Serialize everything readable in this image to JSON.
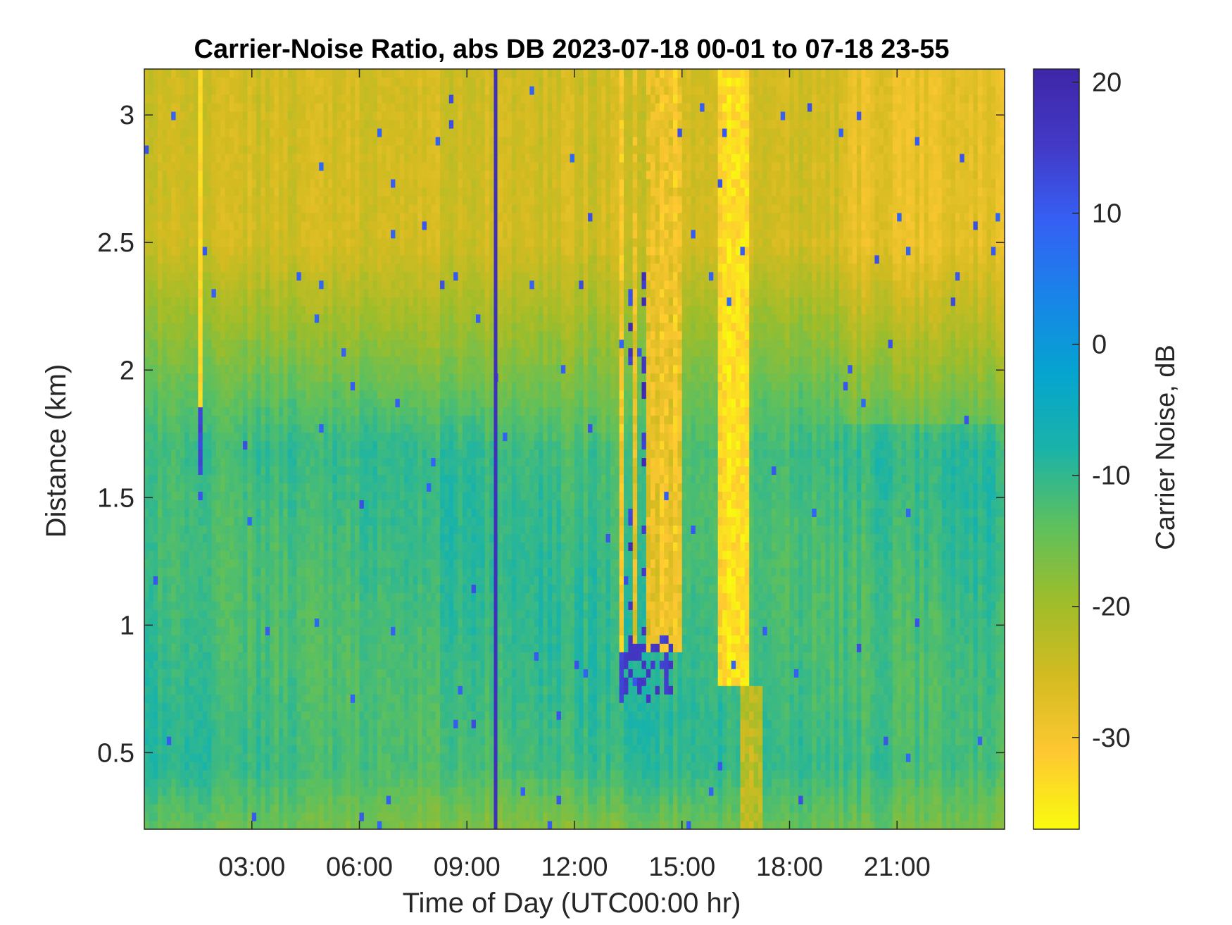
{
  "chart_data": {
    "type": "heatmap",
    "title": "Carrier-Noise Ratio, abs DB 2023-07-18 00-01 to 07-18 23-55",
    "xlabel": "Time of Day (UTC00:00 hr)",
    "ylabel": "Distance (km)",
    "x_unit": "hours",
    "xlim": [
      0.0,
      24.0
    ],
    "ylim": [
      0.2,
      3.18
    ],
    "x_ticks": [
      3,
      6,
      9,
      12,
      15,
      18,
      21
    ],
    "x_tick_labels": [
      "03:00",
      "06:00",
      "09:00",
      "12:00",
      "15:00",
      "18:00",
      "21:00"
    ],
    "y_ticks": [
      0.5,
      1,
      1.5,
      2,
      2.5,
      3
    ],
    "y_tick_labels": [
      "0.5",
      "1",
      "1.5",
      "2",
      "2.5",
      "3"
    ],
    "colorbar": {
      "label": "Carrier Noise, dB",
      "clim": [
        -37,
        21
      ],
      "ticks": [
        20,
        10,
        0,
        -10,
        -20,
        -30
      ],
      "tick_labels": [
        "20",
        "10",
        "0",
        "-10",
        "-20",
        "-30"
      ],
      "colormap": "parula-reversed",
      "colormap_stops": [
        "#f9fb0e",
        "#fec832",
        "#d4bb21",
        "#9ebd2a",
        "#5dc05e",
        "#1ab3a8",
        "#05a4d0",
        "#1884e8",
        "#3560f4",
        "#4339c6",
        "#3e26a8"
      ]
    },
    "grid": false,
    "features": [
      {
        "name": "background-low",
        "y_range": [
          0.2,
          1.7
        ],
        "value_range": [
          -14,
          -9
        ]
      },
      {
        "name": "background-high",
        "y_range": [
          2.2,
          3.18
        ],
        "value_range": [
          -28,
          -22
        ]
      },
      {
        "name": "dropout-line",
        "x": 9.8,
        "value": 18
      },
      {
        "name": "thin-line",
        "x": 1.6,
        "y_range": [
          1.8,
          3.18
        ],
        "value": -34
      },
      {
        "name": "plume-core",
        "x_range": [
          16.0,
          16.9
        ],
        "y_range": [
          0.75,
          3.18
        ],
        "value": -34
      },
      {
        "name": "plume-shear",
        "x_range": [
          13.3,
          15.0
        ],
        "y_range": [
          0.9,
          3.18
        ],
        "value": -31
      },
      {
        "name": "late-high",
        "x_range": [
          20.0,
          24.0
        ],
        "y_range": [
          1.9,
          3.18
        ],
        "value": -27
      }
    ]
  }
}
